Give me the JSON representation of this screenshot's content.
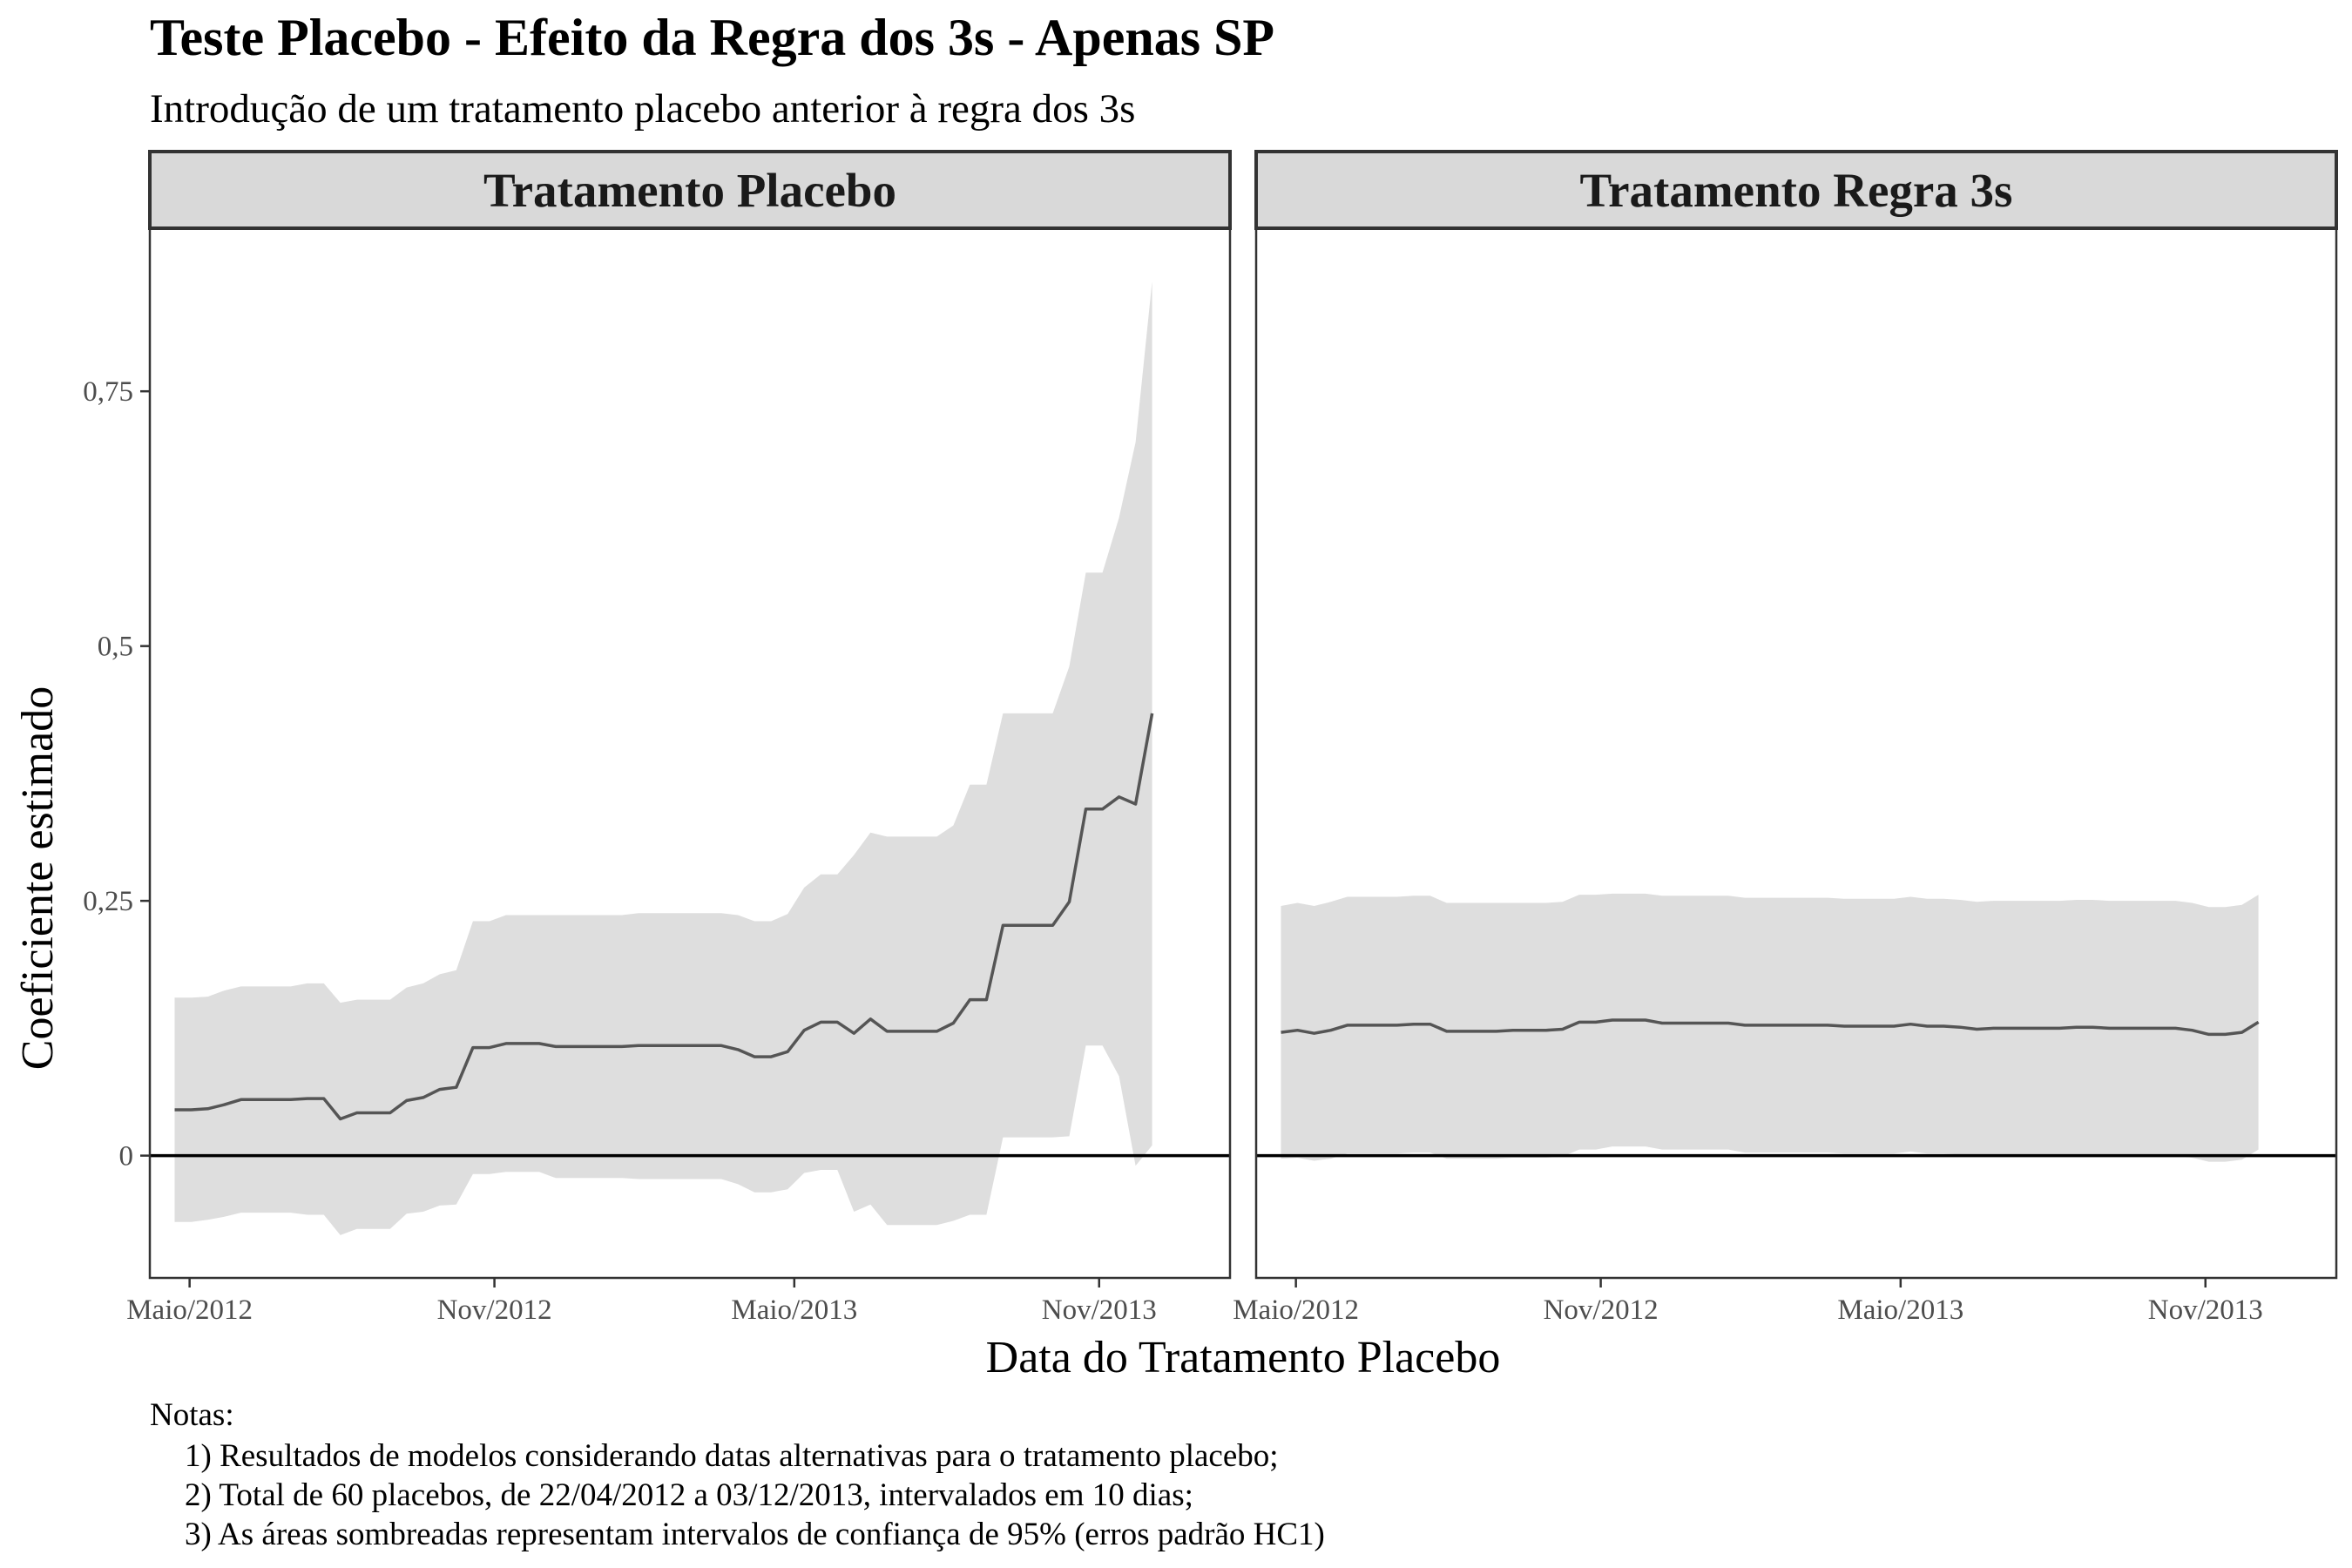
{
  "title": "Teste Placebo - Efeito da Regra dos 3s - Apenas SP",
  "subtitle": "Introdução de um tratamento placebo anterior à regra dos 3s",
  "notes": [
    "Notas:",
    "1) Resultados de modelos considerando datas alternativas para o tratamento placebo;",
    "2) Total de 60 placebos, de 22/04/2012 a 03/12/2013, intervalados em 10 dias;",
    "3) As áreas sombreadas representam intervalos de confiança de 95% (erros padrão HC1)"
  ],
  "colors": {
    "ribbon": "#dedede",
    "line": "#555555",
    "zero_line": "#000000",
    "strip_fill": "#d9d9d9",
    "panel_border": "#333333"
  },
  "chart_data": {
    "type": "line",
    "xlabel": "Data do Tratamento Placebo",
    "ylabel": "Coeficiente estimado",
    "ylim": [
      -0.12,
      0.91
    ],
    "yticks": [
      0,
      0.25,
      0.5,
      0.75
    ],
    "ytick_labels": [
      "0",
      "0,25",
      "0,5",
      "0,75"
    ],
    "xlim": [
      "2012-04-07",
      "2014-01-19"
    ],
    "xticks": [
      "2012-05-01",
      "2012-11-01",
      "2013-05-01",
      "2013-11-01"
    ],
    "xtick_labels": [
      "Maio/2012",
      "Nov/2012",
      "Maio/2013",
      "Nov/2013"
    ],
    "hline": 0,
    "grid": false,
    "panels": [
      {
        "name": "Tratamento Placebo",
        "points": [
          {
            "x": "2012-04-22",
            "y": 0.045,
            "lo": -0.065,
            "hi": 0.155
          },
          {
            "x": "2012-05-02",
            "y": 0.045,
            "lo": -0.065,
            "hi": 0.155
          },
          {
            "x": "2012-05-12",
            "y": 0.046,
            "lo": -0.063,
            "hi": 0.156
          },
          {
            "x": "2012-05-22",
            "y": 0.05,
            "lo": -0.06,
            "hi": 0.162
          },
          {
            "x": "2012-06-01",
            "y": 0.055,
            "lo": -0.056,
            "hi": 0.166
          },
          {
            "x": "2012-06-11",
            "y": 0.055,
            "lo": -0.056,
            "hi": 0.166
          },
          {
            "x": "2012-06-21",
            "y": 0.055,
            "lo": -0.056,
            "hi": 0.166
          },
          {
            "x": "2012-07-01",
            "y": 0.055,
            "lo": -0.056,
            "hi": 0.166
          },
          {
            "x": "2012-07-11",
            "y": 0.056,
            "lo": -0.058,
            "hi": 0.169
          },
          {
            "x": "2012-07-21",
            "y": 0.056,
            "lo": -0.058,
            "hi": 0.169
          },
          {
            "x": "2012-07-31",
            "y": 0.036,
            "lo": -0.078,
            "hi": 0.15
          },
          {
            "x": "2012-08-10",
            "y": 0.042,
            "lo": -0.072,
            "hi": 0.153
          },
          {
            "x": "2012-08-20",
            "y": 0.042,
            "lo": -0.072,
            "hi": 0.153
          },
          {
            "x": "2012-08-30",
            "y": 0.042,
            "lo": -0.072,
            "hi": 0.153
          },
          {
            "x": "2012-09-09",
            "y": 0.054,
            "lo": -0.057,
            "hi": 0.165
          },
          {
            "x": "2012-09-19",
            "y": 0.057,
            "lo": -0.055,
            "hi": 0.169
          },
          {
            "x": "2012-09-29",
            "y": 0.065,
            "lo": -0.049,
            "hi": 0.178
          },
          {
            "x": "2012-10-09",
            "y": 0.067,
            "lo": -0.048,
            "hi": 0.182
          },
          {
            "x": "2012-10-19",
            "y": 0.106,
            "lo": -0.018,
            "hi": 0.23
          },
          {
            "x": "2012-10-29",
            "y": 0.106,
            "lo": -0.018,
            "hi": 0.23
          },
          {
            "x": "2012-11-08",
            "y": 0.11,
            "lo": -0.016,
            "hi": 0.236
          },
          {
            "x": "2012-11-18",
            "y": 0.11,
            "lo": -0.016,
            "hi": 0.236
          },
          {
            "x": "2012-11-28",
            "y": 0.11,
            "lo": -0.016,
            "hi": 0.236
          },
          {
            "x": "2012-12-08",
            "y": 0.107,
            "lo": -0.022,
            "hi": 0.236
          },
          {
            "x": "2012-12-18",
            "y": 0.107,
            "lo": -0.022,
            "hi": 0.236
          },
          {
            "x": "2012-12-28",
            "y": 0.107,
            "lo": -0.022,
            "hi": 0.236
          },
          {
            "x": "2013-01-07",
            "y": 0.107,
            "lo": -0.022,
            "hi": 0.236
          },
          {
            "x": "2013-01-17",
            "y": 0.107,
            "lo": -0.022,
            "hi": 0.236
          },
          {
            "x": "2013-01-27",
            "y": 0.108,
            "lo": -0.023,
            "hi": 0.238
          },
          {
            "x": "2013-02-06",
            "y": 0.108,
            "lo": -0.023,
            "hi": 0.238
          },
          {
            "x": "2013-02-16",
            "y": 0.108,
            "lo": -0.023,
            "hi": 0.238
          },
          {
            "x": "2013-02-26",
            "y": 0.108,
            "lo": -0.023,
            "hi": 0.238
          },
          {
            "x": "2013-03-08",
            "y": 0.108,
            "lo": -0.023,
            "hi": 0.238
          },
          {
            "x": "2013-03-18",
            "y": 0.108,
            "lo": -0.023,
            "hi": 0.238
          },
          {
            "x": "2013-03-28",
            "y": 0.104,
            "lo": -0.028,
            "hi": 0.236
          },
          {
            "x": "2013-04-07",
            "y": 0.097,
            "lo": -0.036,
            "hi": 0.23
          },
          {
            "x": "2013-04-17",
            "y": 0.097,
            "lo": -0.036,
            "hi": 0.23
          },
          {
            "x": "2013-04-27",
            "y": 0.102,
            "lo": -0.033,
            "hi": 0.237
          },
          {
            "x": "2013-05-07",
            "y": 0.123,
            "lo": -0.017,
            "hi": 0.263
          },
          {
            "x": "2013-05-17",
            "y": 0.131,
            "lo": -0.014,
            "hi": 0.276
          },
          {
            "x": "2013-05-27",
            "y": 0.131,
            "lo": -0.014,
            "hi": 0.276
          },
          {
            "x": "2013-06-06",
            "y": 0.12,
            "lo": -0.055,
            "hi": 0.295
          },
          {
            "x": "2013-06-16",
            "y": 0.134,
            "lo": -0.048,
            "hi": 0.317
          },
          {
            "x": "2013-06-26",
            "y": 0.122,
            "lo": -0.068,
            "hi": 0.313
          },
          {
            "x": "2013-07-06",
            "y": 0.122,
            "lo": -0.068,
            "hi": 0.313
          },
          {
            "x": "2013-07-16",
            "y": 0.122,
            "lo": -0.068,
            "hi": 0.313
          },
          {
            "x": "2013-07-26",
            "y": 0.122,
            "lo": -0.068,
            "hi": 0.313
          },
          {
            "x": "2013-08-05",
            "y": 0.13,
            "lo": -0.064,
            "hi": 0.324
          },
          {
            "x": "2013-08-15",
            "y": 0.153,
            "lo": -0.058,
            "hi": 0.364
          },
          {
            "x": "2013-08-25",
            "y": 0.153,
            "lo": -0.058,
            "hi": 0.364
          },
          {
            "x": "2013-09-04",
            "y": 0.226,
            "lo": 0.018,
            "hi": 0.434
          },
          {
            "x": "2013-09-14",
            "y": 0.226,
            "lo": 0.018,
            "hi": 0.434
          },
          {
            "x": "2013-09-24",
            "y": 0.226,
            "lo": 0.018,
            "hi": 0.434
          },
          {
            "x": "2013-10-04",
            "y": 0.226,
            "lo": 0.018,
            "hi": 0.434
          },
          {
            "x": "2013-10-14",
            "y": 0.249,
            "lo": 0.019,
            "hi": 0.48
          },
          {
            "x": "2013-10-24",
            "y": 0.34,
            "lo": 0.108,
            "hi": 0.572
          },
          {
            "x": "2013-11-03",
            "y": 0.34,
            "lo": 0.108,
            "hi": 0.572
          },
          {
            "x": "2013-11-13",
            "y": 0.352,
            "lo": 0.078,
            "hi": 0.626
          },
          {
            "x": "2013-11-23",
            "y": 0.345,
            "lo": -0.01,
            "hi": 0.7
          },
          {
            "x": "2013-12-03",
            "y": 0.434,
            "lo": 0.01,
            "hi": 0.858
          }
        ]
      },
      {
        "name": "Tratamento Regra 3s",
        "points": [
          {
            "x": "2012-04-22",
            "y": 0.121,
            "lo": -0.003,
            "hi": 0.245
          },
          {
            "x": "2012-05-02",
            "y": 0.123,
            "lo": -0.002,
            "hi": 0.248
          },
          {
            "x": "2012-05-12",
            "y": 0.12,
            "lo": -0.005,
            "hi": 0.245
          },
          {
            "x": "2012-05-22",
            "y": 0.123,
            "lo": -0.003,
            "hi": 0.249
          },
          {
            "x": "2012-06-01",
            "y": 0.128,
            "lo": 0.002,
            "hi": 0.254
          },
          {
            "x": "2012-06-11",
            "y": 0.128,
            "lo": 0.002,
            "hi": 0.254
          },
          {
            "x": "2012-06-21",
            "y": 0.128,
            "lo": 0.002,
            "hi": 0.254
          },
          {
            "x": "2012-07-01",
            "y": 0.128,
            "lo": 0.002,
            "hi": 0.254
          },
          {
            "x": "2012-07-11",
            "y": 0.129,
            "lo": 0.003,
            "hi": 0.255
          },
          {
            "x": "2012-07-21",
            "y": 0.129,
            "lo": 0.003,
            "hi": 0.255
          },
          {
            "x": "2012-07-31",
            "y": 0.122,
            "lo": -0.003,
            "hi": 0.248
          },
          {
            "x": "2012-08-10",
            "y": 0.122,
            "lo": -0.003,
            "hi": 0.248
          },
          {
            "x": "2012-08-20",
            "y": 0.122,
            "lo": -0.003,
            "hi": 0.248
          },
          {
            "x": "2012-08-30",
            "y": 0.122,
            "lo": -0.003,
            "hi": 0.248
          },
          {
            "x": "2012-09-09",
            "y": 0.123,
            "lo": -0.002,
            "hi": 0.248
          },
          {
            "x": "2012-09-19",
            "y": 0.123,
            "lo": -0.002,
            "hi": 0.248
          },
          {
            "x": "2012-09-29",
            "y": 0.123,
            "lo": -0.002,
            "hi": 0.248
          },
          {
            "x": "2012-10-09",
            "y": 0.124,
            "lo": -0.001,
            "hi": 0.249
          },
          {
            "x": "2012-10-19",
            "y": 0.131,
            "lo": 0.006,
            "hi": 0.256
          },
          {
            "x": "2012-10-29",
            "y": 0.131,
            "lo": 0.006,
            "hi": 0.256
          },
          {
            "x": "2012-11-08",
            "y": 0.133,
            "lo": 0.009,
            "hi": 0.257
          },
          {
            "x": "2012-11-18",
            "y": 0.133,
            "lo": 0.009,
            "hi": 0.257
          },
          {
            "x": "2012-11-28",
            "y": 0.133,
            "lo": 0.009,
            "hi": 0.257
          },
          {
            "x": "2012-12-08",
            "y": 0.13,
            "lo": 0.006,
            "hi": 0.255
          },
          {
            "x": "2012-12-18",
            "y": 0.13,
            "lo": 0.006,
            "hi": 0.255
          },
          {
            "x": "2012-12-28",
            "y": 0.13,
            "lo": 0.006,
            "hi": 0.255
          },
          {
            "x": "2013-01-07",
            "y": 0.13,
            "lo": 0.006,
            "hi": 0.255
          },
          {
            "x": "2013-01-17",
            "y": 0.13,
            "lo": 0.006,
            "hi": 0.255
          },
          {
            "x": "2013-01-27",
            "y": 0.128,
            "lo": 0.003,
            "hi": 0.253
          },
          {
            "x": "2013-02-06",
            "y": 0.128,
            "lo": 0.003,
            "hi": 0.253
          },
          {
            "x": "2013-02-16",
            "y": 0.128,
            "lo": 0.003,
            "hi": 0.253
          },
          {
            "x": "2013-02-26",
            "y": 0.128,
            "lo": 0.003,
            "hi": 0.253
          },
          {
            "x": "2013-03-08",
            "y": 0.128,
            "lo": 0.003,
            "hi": 0.253
          },
          {
            "x": "2013-03-18",
            "y": 0.128,
            "lo": 0.003,
            "hi": 0.253
          },
          {
            "x": "2013-03-28",
            "y": 0.127,
            "lo": 0.002,
            "hi": 0.252
          },
          {
            "x": "2013-04-07",
            "y": 0.127,
            "lo": 0.002,
            "hi": 0.252
          },
          {
            "x": "2013-04-17",
            "y": 0.127,
            "lo": 0.002,
            "hi": 0.252
          },
          {
            "x": "2013-04-27",
            "y": 0.127,
            "lo": 0.002,
            "hi": 0.252
          },
          {
            "x": "2013-05-07",
            "y": 0.129,
            "lo": 0.004,
            "hi": 0.254
          },
          {
            "x": "2013-05-17",
            "y": 0.127,
            "lo": 0.002,
            "hi": 0.252
          },
          {
            "x": "2013-05-27",
            "y": 0.127,
            "lo": 0.002,
            "hi": 0.252
          },
          {
            "x": "2013-06-06",
            "y": 0.126,
            "lo": 0.001,
            "hi": 0.251
          },
          {
            "x": "2013-06-16",
            "y": 0.124,
            "lo": -0.001,
            "hi": 0.249
          },
          {
            "x": "2013-06-26",
            "y": 0.125,
            "lo": 0.0,
            "hi": 0.25
          },
          {
            "x": "2013-07-06",
            "y": 0.125,
            "lo": 0.0,
            "hi": 0.25
          },
          {
            "x": "2013-07-16",
            "y": 0.125,
            "lo": 0.0,
            "hi": 0.25
          },
          {
            "x": "2013-07-26",
            "y": 0.125,
            "lo": 0.0,
            "hi": 0.25
          },
          {
            "x": "2013-08-05",
            "y": 0.125,
            "lo": 0.0,
            "hi": 0.25
          },
          {
            "x": "2013-08-15",
            "y": 0.126,
            "lo": 0.001,
            "hi": 0.251
          },
          {
            "x": "2013-08-25",
            "y": 0.126,
            "lo": 0.001,
            "hi": 0.251
          },
          {
            "x": "2013-09-04",
            "y": 0.125,
            "lo": 0.0,
            "hi": 0.25
          },
          {
            "x": "2013-09-14",
            "y": 0.125,
            "lo": 0.0,
            "hi": 0.25
          },
          {
            "x": "2013-09-24",
            "y": 0.125,
            "lo": 0.0,
            "hi": 0.25
          },
          {
            "x": "2013-10-04",
            "y": 0.125,
            "lo": 0.0,
            "hi": 0.25
          },
          {
            "x": "2013-10-14",
            "y": 0.125,
            "lo": 0.0,
            "hi": 0.25
          },
          {
            "x": "2013-10-24",
            "y": 0.123,
            "lo": -0.002,
            "hi": 0.248
          },
          {
            "x": "2013-11-03",
            "y": 0.119,
            "lo": -0.006,
            "hi": 0.244
          },
          {
            "x": "2013-11-13",
            "y": 0.119,
            "lo": -0.006,
            "hi": 0.244
          },
          {
            "x": "2013-11-23",
            "y": 0.121,
            "lo": -0.004,
            "hi": 0.246
          },
          {
            "x": "2013-12-03",
            "y": 0.131,
            "lo": 0.006,
            "hi": 0.256
          }
        ]
      }
    ]
  }
}
